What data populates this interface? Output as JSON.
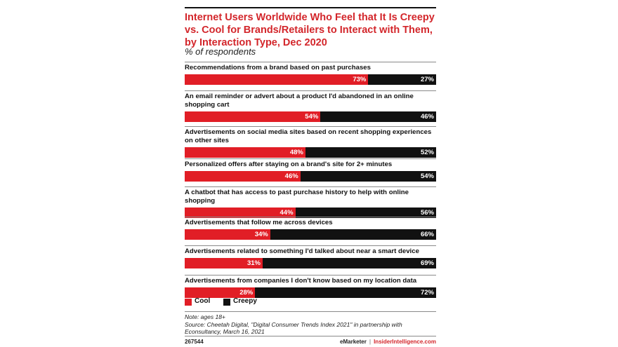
{
  "title": "Internet Users Worldwide Who Feel that It Is Creepy vs. Cool for Brands/Retailers to Interact with Them, by Interaction Type, Dec 2020",
  "subtitle": "% of respondents",
  "legend": {
    "cool": "Cool",
    "creepy": "Creepy"
  },
  "colors": {
    "cool": "#e11e26",
    "creepy": "#111111",
    "title": "#d3262b"
  },
  "notes": {
    "note": "Note: ages 18+",
    "source": "Source: Cheetah Digital, \"Digital Consumer Trends Index 2021\" in partnership with Econsultancy, March 16, 2021"
  },
  "footer": {
    "code": "267544",
    "brand1": "eMarketer",
    "separator": "|",
    "brand2": "InsiderIntelligence.com"
  },
  "chart_data": {
    "type": "bar",
    "orientation": "horizontal-stacked-100",
    "categories": [
      "Recommendations from a brand based on past purchases",
      "An email reminder or advert about a product I'd abandoned in an online shopping cart",
      "Advertisements on social media sites based on recent shopping experiences on other sites",
      "Personalized offers after staying on a brand's site for 2+ minutes",
      "A chatbot that has access to past purchase history to help with online shopping",
      "Advertisements  that follow me across devices",
      "Advertisements related to something I'd talked about near a smart device",
      "Advertisements from companies I don't know based on my location data"
    ],
    "series": [
      {
        "name": "Cool",
        "values": [
          73,
          54,
          48,
          46,
          44,
          34,
          31,
          28
        ],
        "color": "#e11e26"
      },
      {
        "name": "Creepy",
        "values": [
          27,
          46,
          52,
          54,
          56,
          66,
          69,
          72
        ],
        "color": "#111111"
      }
    ],
    "value_suffix": "%",
    "xlim": [
      0,
      100
    ],
    "legend_position": "bottom-left",
    "grid": false
  }
}
